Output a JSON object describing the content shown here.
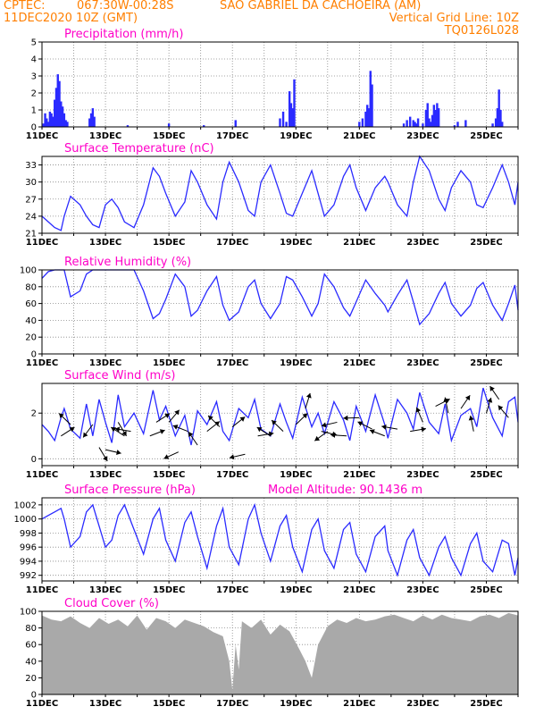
{
  "header": {
    "source": "CPTEC:",
    "coords": "067:30W-00:28S",
    "station": "SAO GABRIEL DA CACHOEIRA (AM)",
    "datetime": "11DEC2020 10Z (GMT)",
    "grid_note": "Vertical Grid Line: 10Z",
    "code": "TQ0126L028"
  },
  "x_axis": {
    "tick_labels": [
      "11DEC",
      "13DEC",
      "15DEC",
      "17DEC",
      "19DEC",
      "21DEC",
      "23DEC",
      "25DEC"
    ],
    "tick_days": [
      0,
      2,
      4,
      6,
      8,
      10,
      12,
      14
    ],
    "range_days": [
      0,
      15
    ]
  },
  "chart_data": [
    {
      "type": "bar",
      "title": "Precipitation (mm/h)",
      "ylim": [
        0,
        5
      ],
      "yticks": [
        0,
        1,
        2,
        3,
        4,
        5
      ],
      "color": "#2a2aff",
      "x": [
        0.05,
        0.1,
        0.15,
        0.2,
        0.25,
        0.3,
        0.35,
        0.4,
        0.45,
        0.5,
        0.55,
        0.6,
        0.65,
        0.7,
        0.75,
        0.8,
        1.5,
        1.55,
        1.6,
        1.65,
        2.7,
        4.0,
        5.1,
        6.1,
        7.5,
        7.6,
        7.7,
        7.8,
        7.85,
        7.9,
        7.95,
        10.0,
        10.1,
        10.2,
        10.25,
        10.3,
        10.35,
        10.4,
        11.4,
        11.5,
        11.6,
        11.7,
        11.75,
        11.8,
        11.85,
        12.0,
        12.1,
        12.15,
        12.2,
        12.25,
        12.3,
        12.35,
        12.4,
        12.45,
        12.5,
        13.0,
        13.1,
        13.35,
        14.2,
        14.3,
        14.35,
        14.4,
        14.45,
        14.5
      ],
      "values": [
        0.2,
        0.8,
        0.5,
        0.3,
        0.9,
        0.8,
        0.6,
        1.6,
        2.3,
        3.1,
        2.7,
        1.5,
        1.2,
        0.8,
        0.4,
        0.3,
        0.5,
        0.8,
        1.1,
        0.6,
        0.1,
        0.2,
        0.1,
        0.4,
        0.5,
        0.9,
        0.3,
        2.1,
        1.4,
        1.1,
        2.8,
        0.3,
        0.5,
        0.9,
        1.3,
        1.1,
        3.3,
        2.5,
        0.2,
        0.4,
        0.6,
        0.4,
        0.3,
        0.2,
        0.5,
        0.2,
        1.0,
        1.4,
        0.5,
        0.3,
        0.7,
        1.3,
        1.0,
        1.4,
        1.1,
        0.1,
        0.3,
        0.4,
        0.2,
        0.5,
        1.1,
        2.2,
        1.0,
        0.3
      ]
    },
    {
      "type": "line",
      "title": "Surface Temperature (nC)",
      "ylim": [
        21,
        34.5
      ],
      "yticks": [
        21,
        24,
        27,
        30,
        33
      ],
      "color": "#2a2aff",
      "x": [
        0,
        0.2,
        0.4,
        0.6,
        0.7,
        0.9,
        1.2,
        1.4,
        1.6,
        1.8,
        2.0,
        2.2,
        2.4,
        2.6,
        2.9,
        3.2,
        3.5,
        3.7,
        3.9,
        4.2,
        4.5,
        4.7,
        4.9,
        5.2,
        5.5,
        5.7,
        5.9,
        6.2,
        6.5,
        6.7,
        6.9,
        7.2,
        7.5,
        7.7,
        7.9,
        8.2,
        8.5,
        8.7,
        8.9,
        9.2,
        9.5,
        9.7,
        9.9,
        10.2,
        10.5,
        10.8,
        10.9,
        11.2,
        11.5,
        11.7,
        11.9,
        12.2,
        12.5,
        12.7,
        12.9,
        13.2,
        13.5,
        13.7,
        13.9,
        14.2,
        14.5,
        14.7,
        14.9,
        15.0
      ],
      "values": [
        24.0,
        23.0,
        22.0,
        21.5,
        24.0,
        27.5,
        26.0,
        24.0,
        22.5,
        22.0,
        26.0,
        27.0,
        25.5,
        23.0,
        22.0,
        26.0,
        32.5,
        31.0,
        28.0,
        24.0,
        26.5,
        32.0,
        30.0,
        26.0,
        23.5,
        30.0,
        33.5,
        30.0,
        25.0,
        24.0,
        30.0,
        33.0,
        28.0,
        24.5,
        24.0,
        28.0,
        32.0,
        28.0,
        24.0,
        26.0,
        31.0,
        33.0,
        29.0,
        25.0,
        29.0,
        31.0,
        30.0,
        26.0,
        24.0,
        30.0,
        34.5,
        32.0,
        27.0,
        25.0,
        29.0,
        32.0,
        30.0,
        26.0,
        25.5,
        29.0,
        33.0,
        30.0,
        26.0,
        30.0
      ]
    },
    {
      "type": "line",
      "title": "Relative Humidity (%)",
      "ylim": [
        0,
        100
      ],
      "yticks": [
        0,
        20,
        40,
        60,
        80,
        100
      ],
      "color": "#2a2aff",
      "x": [
        0,
        0.2,
        0.4,
        0.6,
        0.7,
        0.9,
        1.2,
        1.4,
        1.6,
        1.8,
        2.0,
        2.2,
        2.4,
        2.6,
        2.9,
        3.2,
        3.5,
        3.7,
        3.9,
        4.2,
        4.5,
        4.7,
        4.9,
        5.2,
        5.5,
        5.7,
        5.9,
        6.2,
        6.5,
        6.7,
        6.9,
        7.2,
        7.5,
        7.7,
        7.9,
        8.2,
        8.5,
        8.7,
        8.9,
        9.2,
        9.5,
        9.7,
        9.9,
        10.2,
        10.5,
        10.8,
        10.9,
        11.2,
        11.5,
        11.7,
        11.9,
        12.2,
        12.5,
        12.7,
        12.9,
        13.2,
        13.5,
        13.7,
        13.9,
        14.2,
        14.5,
        14.7,
        14.9,
        15.0
      ],
      "values": [
        90,
        98,
        100,
        100,
        100,
        68,
        75,
        95,
        100,
        100,
        100,
        100,
        100,
        100,
        100,
        75,
        42,
        48,
        65,
        95,
        80,
        45,
        52,
        75,
        92,
        58,
        40,
        50,
        80,
        88,
        60,
        42,
        60,
        92,
        88,
        68,
        45,
        60,
        95,
        80,
        55,
        45,
        62,
        88,
        72,
        58,
        50,
        70,
        88,
        62,
        35,
        48,
        72,
        85,
        60,
        45,
        58,
        78,
        85,
        58,
        40,
        60,
        82,
        52
      ]
    },
    {
      "type": "line",
      "title": "Surface Wind (m/s)",
      "ylim": [
        -0.3,
        3.3
      ],
      "yticks": [
        0,
        2
      ],
      "color": "#2a2aff",
      "x": [
        0,
        0.2,
        0.4,
        0.6,
        0.7,
        0.9,
        1.2,
        1.4,
        1.6,
        1.8,
        2.0,
        2.2,
        2.4,
        2.6,
        2.9,
        3.2,
        3.5,
        3.7,
        3.9,
        4.2,
        4.5,
        4.7,
        4.9,
        5.2,
        5.5,
        5.7,
        5.9,
        6.2,
        6.5,
        6.7,
        6.9,
        7.2,
        7.5,
        7.7,
        7.9,
        8.2,
        8.5,
        8.7,
        8.9,
        9.2,
        9.5,
        9.7,
        9.9,
        10.2,
        10.5,
        10.8,
        10.9,
        11.2,
        11.5,
        11.7,
        11.9,
        12.2,
        12.5,
        12.7,
        12.9,
        13.2,
        13.5,
        13.7,
        13.9,
        14.2,
        14.5,
        14.7,
        14.9,
        15.0
      ],
      "values": [
        1.5,
        1.2,
        0.8,
        1.8,
        2.2,
        1.3,
        0.9,
        2.4,
        1.0,
        2.6,
        1.6,
        0.7,
        2.8,
        1.4,
        2.0,
        1.1,
        3.0,
        1.7,
        2.3,
        1.0,
        1.9,
        0.6,
        2.1,
        1.5,
        2.5,
        1.2,
        0.8,
        2.2,
        1.8,
        2.6,
        1.3,
        1.0,
        2.4,
        1.6,
        0.9,
        2.7,
        1.4,
        2.0,
        1.1,
        2.5,
        1.7,
        0.8,
        2.3,
        1.2,
        2.8,
        1.5,
        0.9,
        2.6,
        2.0,
        1.3,
        2.9,
        1.6,
        1.1,
        2.4,
        0.8,
        1.9,
        2.2,
        1.4,
        3.1,
        1.8,
        1.0,
        2.5,
        2.7,
        1.6
      ],
      "arrows": [
        [
          0.6,
          1.0,
          1.0
        ],
        [
          0.9,
          1.5,
          -0.8
        ],
        [
          1.6,
          1.5,
          -2.5
        ],
        [
          1.8,
          0.5,
          2.6
        ],
        [
          2.0,
          0.4,
          1.8
        ],
        [
          2.4,
          1.6,
          2.6
        ],
        [
          2.6,
          1.0,
          -1.0
        ],
        [
          2.8,
          1.2,
          -1.4
        ],
        [
          3.4,
          1.0,
          1.2
        ],
        [
          3.6,
          1.6,
          1.0
        ],
        [
          4.0,
          1.6,
          0.7
        ],
        [
          4.3,
          0.3,
          -2.0
        ],
        [
          4.6,
          1.2,
          -1.2
        ],
        [
          4.9,
          0.6,
          -0.6
        ],
        [
          5.2,
          1.2,
          0.9
        ],
        [
          5.6,
          1.4,
          -0.8
        ],
        [
          6.0,
          1.4,
          0.9
        ],
        [
          6.4,
          0.2,
          -1.8
        ],
        [
          6.8,
          1.0,
          1.4
        ],
        [
          7.2,
          1.0,
          -1.0
        ],
        [
          7.6,
          1.2,
          -0.8
        ],
        [
          8.0,
          1.5,
          0.8
        ],
        [
          8.3,
          2.2,
          0.3
        ],
        [
          8.8,
          1.2,
          1.8
        ],
        [
          9.0,
          1.2,
          -2.2
        ],
        [
          9.3,
          1.6,
          -1.8
        ],
        [
          9.6,
          1.0,
          -1.5
        ],
        [
          10.0,
          1.8,
          -1.6
        ],
        [
          10.4,
          1.3,
          -1.1
        ],
        [
          10.8,
          1.0,
          -1.2
        ],
        [
          11.2,
          1.3,
          -1.4
        ],
        [
          11.6,
          1.2,
          1.4
        ],
        [
          12.0,
          1.6,
          -0.4
        ],
        [
          12.4,
          2.3,
          1.1
        ],
        [
          12.8,
          2.0,
          -0.2
        ],
        [
          13.2,
          2.2,
          0.6
        ],
        [
          13.6,
          1.2,
          -0.2
        ],
        [
          14.0,
          2.0,
          0.3
        ],
        [
          14.4,
          2.6,
          -0.6
        ],
        [
          14.7,
          1.8,
          -0.7
        ]
      ]
    },
    {
      "type": "line",
      "title": "Surface Pressure (hPa)",
      "annotation": "Model Altitude: 90.1436 m",
      "ylim": [
        991.2,
        1003
      ],
      "yticks": [
        992,
        994,
        996,
        998,
        1000,
        1002
      ],
      "color": "#2a2aff",
      "x": [
        0,
        0.2,
        0.4,
        0.6,
        0.7,
        0.9,
        1.2,
        1.4,
        1.6,
        1.8,
        2.0,
        2.2,
        2.4,
        2.6,
        2.9,
        3.2,
        3.5,
        3.7,
        3.9,
        4.2,
        4.5,
        4.7,
        4.9,
        5.2,
        5.5,
        5.7,
        5.9,
        6.2,
        6.5,
        6.7,
        6.9,
        7.2,
        7.5,
        7.7,
        7.9,
        8.2,
        8.5,
        8.7,
        8.9,
        9.2,
        9.5,
        9.7,
        9.9,
        10.2,
        10.5,
        10.8,
        10.9,
        11.2,
        11.5,
        11.7,
        11.9,
        12.2,
        12.5,
        12.7,
        12.9,
        13.2,
        13.5,
        13.7,
        13.9,
        14.2,
        14.5,
        14.7,
        14.9,
        15.0
      ],
      "values": [
        1000.0,
        1000.5,
        1001.0,
        1001.5,
        1000.0,
        996.0,
        997.5,
        1001.0,
        1002.0,
        999.0,
        996.0,
        997.0,
        1000.5,
        1002.0,
        998.5,
        995.0,
        1000.0,
        1001.5,
        997.0,
        994.0,
        999.5,
        1001.0,
        997.5,
        993.0,
        999.0,
        1001.5,
        996.0,
        993.5,
        1000.0,
        1002.0,
        998.0,
        994.0,
        999.0,
        1000.5,
        996.0,
        992.5,
        998.5,
        1000.0,
        995.5,
        993.0,
        998.5,
        999.5,
        995.0,
        992.5,
        997.5,
        999.0,
        995.5,
        992.0,
        997.0,
        998.5,
        994.5,
        992.0,
        996.0,
        997.5,
        994.5,
        992.0,
        996.5,
        998.0,
        994.0,
        992.5,
        997.0,
        996.5,
        992.0,
        994.5
      ]
    },
    {
      "type": "area",
      "title": "Cloud Cover (%)",
      "ylim": [
        0,
        100
      ],
      "yticks": [
        0,
        20,
        40,
        60,
        80,
        100
      ],
      "color": "#a9a9a9",
      "x": [
        0,
        0.3,
        0.6,
        0.9,
        1.2,
        1.5,
        1.8,
        2.1,
        2.4,
        2.7,
        3.0,
        3.3,
        3.6,
        3.9,
        4.2,
        4.5,
        4.8,
        5.1,
        5.4,
        5.7,
        5.9,
        6.0,
        6.1,
        6.2,
        6.3,
        6.6,
        6.9,
        7.2,
        7.5,
        7.8,
        8.1,
        8.3,
        8.5,
        8.7,
        9.0,
        9.3,
        9.6,
        9.9,
        10.2,
        10.5,
        10.8,
        11.1,
        11.4,
        11.7,
        12.0,
        12.3,
        12.6,
        12.9,
        13.2,
        13.5,
        13.8,
        14.1,
        14.4,
        14.7,
        15.0
      ],
      "values": [
        95,
        90,
        88,
        94,
        86,
        80,
        92,
        85,
        90,
        82,
        95,
        78,
        92,
        88,
        80,
        90,
        86,
        82,
        75,
        70,
        40,
        5,
        60,
        30,
        88,
        80,
        90,
        72,
        84,
        76,
        55,
        40,
        20,
        60,
        82,
        90,
        86,
        92,
        88,
        90,
        94,
        96,
        92,
        88,
        95,
        90,
        96,
        92,
        90,
        88,
        94,
        96,
        92,
        98,
        95
      ]
    }
  ]
}
